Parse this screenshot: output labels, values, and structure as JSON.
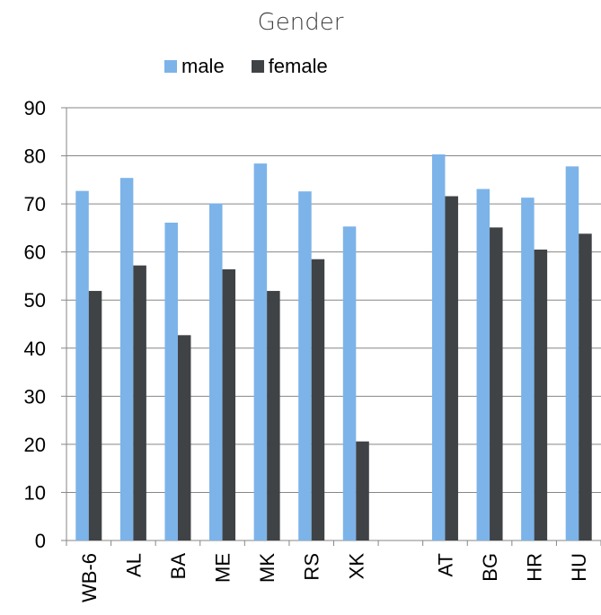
{
  "chart_data": {
    "type": "bar",
    "title": "Gender",
    "categories": [
      "WB-6",
      "AL",
      "BA",
      "ME",
      "MK",
      "RS",
      "XK",
      "",
      "AT",
      "BG",
      "HR",
      "HU"
    ],
    "series": [
      {
        "name": "male",
        "color": "#7cb3e9",
        "values": [
          72.7,
          75.4,
          66.1,
          70.1,
          78.4,
          72.6,
          65.3,
          null,
          80.3,
          73.1,
          71.3,
          77.8
        ]
      },
      {
        "name": "female",
        "color": "#404346",
        "values": [
          51.9,
          57.2,
          42.7,
          56.4,
          51.9,
          58.5,
          20.6,
          null,
          71.6,
          65.1,
          60.5,
          63.8
        ]
      }
    ],
    "ylim": [
      0,
      90
    ],
    "yticks": [
      0,
      10,
      20,
      30,
      40,
      50,
      60,
      70,
      80,
      90
    ],
    "grid": true,
    "legend_position": "top"
  }
}
